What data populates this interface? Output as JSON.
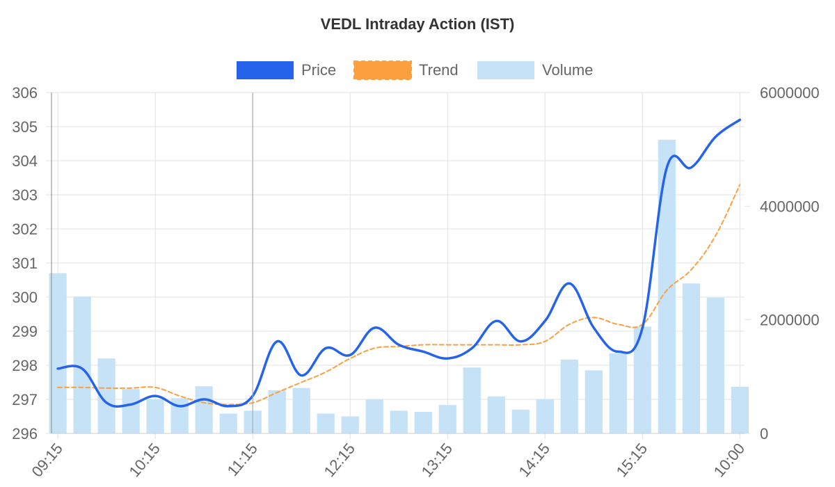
{
  "chart_data": {
    "type": "bar",
    "title": "VEDL Intraday Action (IST)",
    "legend": {
      "position": "top",
      "entries": [
        {
          "name": "Price",
          "color": "#2563eb"
        },
        {
          "name": "Trend",
          "color": "#fb9f3f"
        },
        {
          "name": "Volume",
          "color": "#c6e2f7"
        }
      ]
    },
    "x_tick_labels": [
      "09:15",
      "10:15",
      "11:15",
      "12:15",
      "13:15",
      "14:15",
      "15:15",
      "10:00"
    ],
    "x_tick_positions": [
      0,
      4,
      8,
      12,
      16,
      20,
      24,
      28
    ],
    "y_left": {
      "min": 296,
      "max": 306,
      "ticks": [
        "296",
        "297",
        "298",
        "299",
        "300",
        "301",
        "302",
        "303",
        "304",
        "305",
        "306"
      ]
    },
    "y_right": {
      "min": 0,
      "max": 6000000,
      "ticks": [
        "0",
        "2000000",
        "4000000",
        "6000000"
      ]
    },
    "grid": true,
    "series": [
      {
        "name": "Price",
        "type": "line",
        "axis": "left",
        "color": "#2563eb",
        "values": [
          297.9,
          297.9,
          296.9,
          296.85,
          297.1,
          296.8,
          297.0,
          296.8,
          297.1,
          298.7,
          297.7,
          298.5,
          298.3,
          299.1,
          298.6,
          298.4,
          298.2,
          298.5,
          299.3,
          298.7,
          299.3,
          300.4,
          299.1,
          298.4,
          299.1,
          303.8,
          303.8,
          304.7,
          305.2
        ],
        "x_end_offset": 0.4
      },
      {
        "name": "Trend",
        "type": "line",
        "axis": "left",
        "color": "#fb9f3f",
        "dashed": true,
        "values": [
          297.35,
          297.35,
          297.33,
          297.33,
          297.35,
          297.1,
          296.9,
          296.85,
          296.9,
          297.2,
          297.5,
          297.8,
          298.2,
          298.5,
          298.55,
          298.6,
          298.6,
          298.6,
          298.6,
          298.6,
          298.7,
          299.2,
          299.4,
          299.2,
          299.2,
          300.2,
          300.8,
          301.8,
          303.3
        ],
        "x_end_offset": 0.4
      },
      {
        "name": "Volume",
        "type": "bar",
        "axis": "right",
        "color": "#c6e2f7",
        "values": [
          2820000,
          2410000,
          1320000,
          780000,
          600000,
          620000,
          830000,
          350000,
          400000,
          760000,
          800000,
          350000,
          300000,
          600000,
          400000,
          380000,
          500000,
          1160000,
          650000,
          420000,
          600000,
          1300000,
          1110000,
          1410000,
          1880000,
          5170000,
          2640000,
          2390000,
          820000
        ]
      }
    ]
  }
}
